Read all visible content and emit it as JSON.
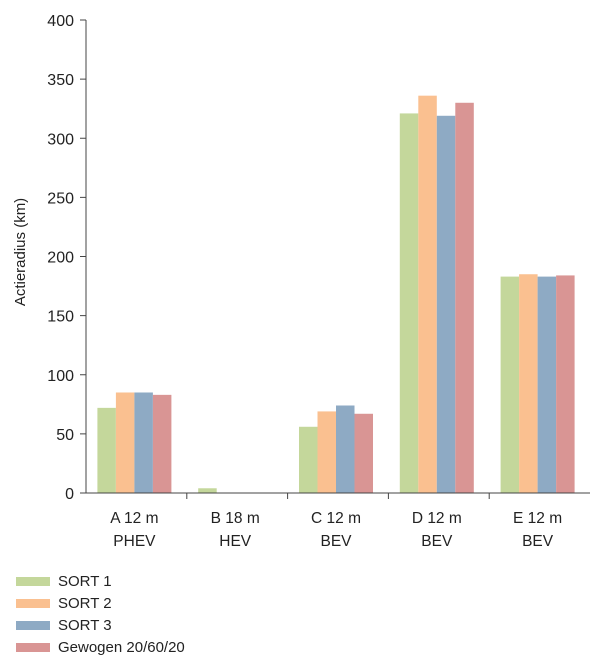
{
  "chart_data": {
    "type": "bar",
    "ylabel": "Actieradius (km)",
    "xlabel": "",
    "ylim": [
      0,
      400
    ],
    "yticks": [
      0,
      50,
      100,
      150,
      200,
      250,
      300,
      350,
      400
    ],
    "categories": [
      [
        "A 12 m",
        "PHEV"
      ],
      [
        "B 18 m",
        "HEV"
      ],
      [
        "C 12 m",
        "BEV"
      ],
      [
        "D 12 m",
        "BEV"
      ],
      [
        "E 12 m",
        "BEV"
      ]
    ],
    "series": [
      {
        "name": "SORT 1",
        "color": "#c4d79b",
        "values": [
          72,
          4,
          56,
          321,
          183
        ]
      },
      {
        "name": "SORT 2",
        "color": "#fac090",
        "values": [
          85,
          0,
          69,
          336,
          185
        ]
      },
      {
        "name": "SORT 3",
        "color": "#8eaac4",
        "values": [
          85,
          0,
          74,
          319,
          183
        ]
      },
      {
        "name": "Gewogen 20/60/20",
        "color": "#d99594",
        "values": [
          83,
          0,
          67,
          330,
          184
        ]
      }
    ],
    "legend_position": "bottom-left",
    "grid": false
  }
}
